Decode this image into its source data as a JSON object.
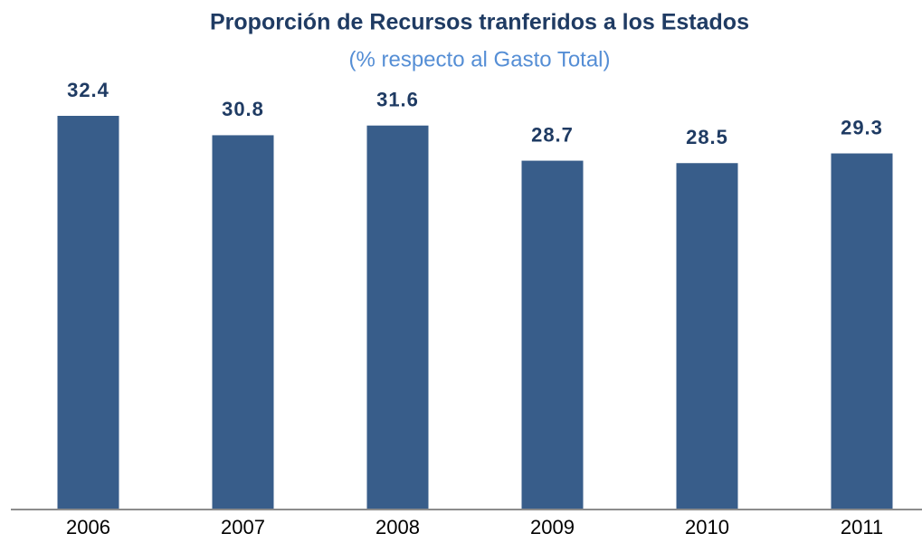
{
  "chart_data": {
    "type": "bar",
    "title": "Proporción de Recursos tranferidos a los Estados",
    "subtitle": "(% respecto al Gasto Total)",
    "categories": [
      "2006",
      "2007",
      "2008",
      "2009",
      "2010",
      "2011"
    ],
    "values": [
      32.4,
      30.8,
      31.6,
      28.7,
      28.5,
      29.3
    ],
    "color": "#385d8a"
  }
}
